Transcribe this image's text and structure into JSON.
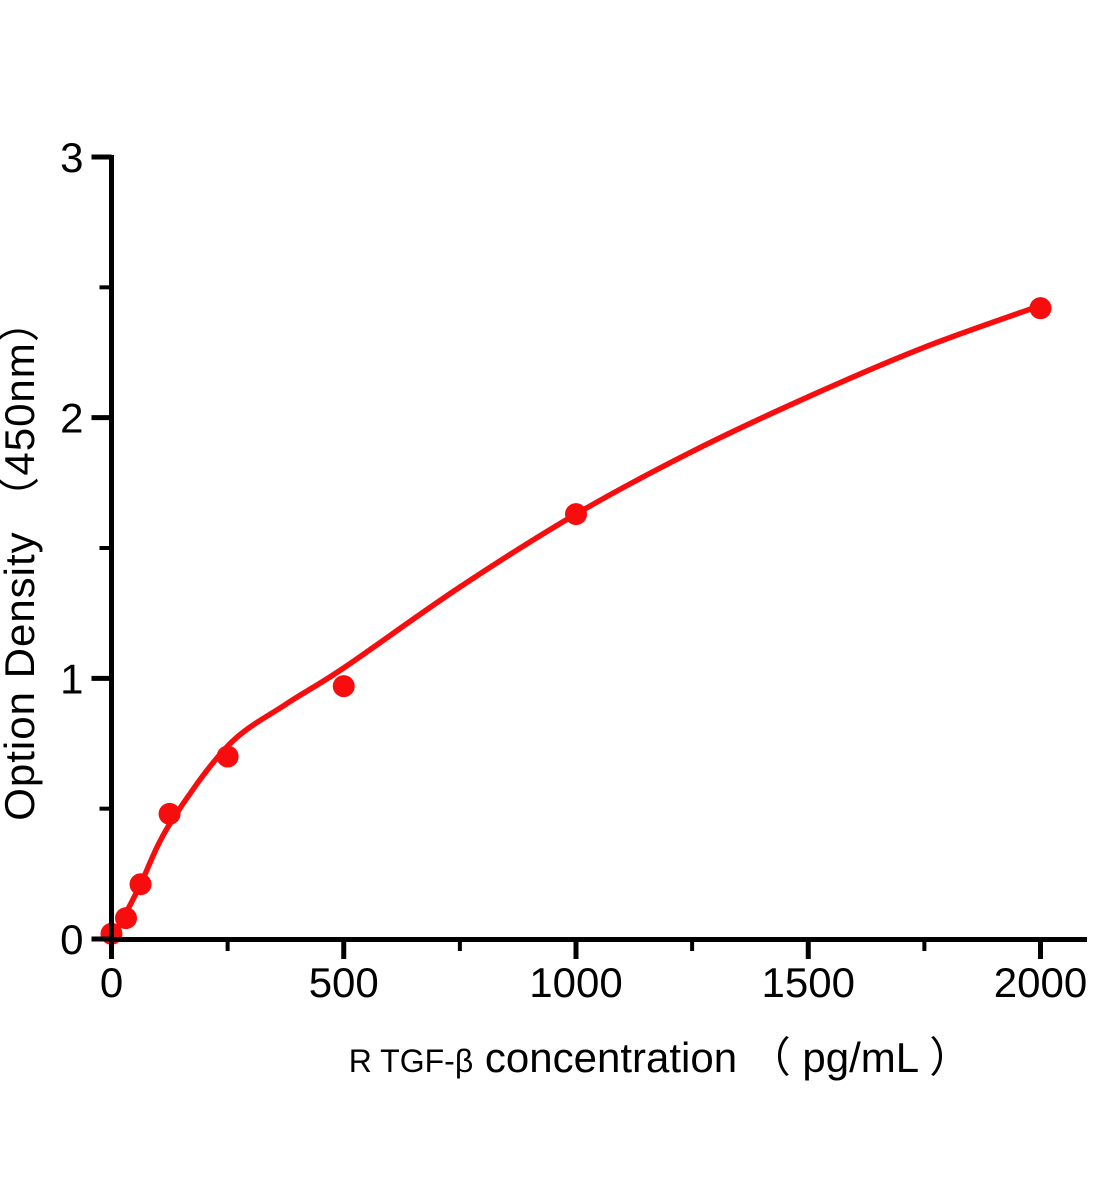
{
  "figure": {
    "background_color": "#ffffff",
    "description": "ELISA standard curve plot"
  },
  "chart_data": {
    "type": "scatter",
    "title": "",
    "xlabel_small": "R TGF-β",
    "xlabel_main": " concentration （ pg/mL ）",
    "ylabel": "Option Density （450nm）",
    "xlim": [
      0,
      2100
    ],
    "ylim": [
      0,
      3
    ],
    "x_major_ticks": [
      0,
      500,
      1000,
      1500,
      2000
    ],
    "x_major_tick_labels": [
      "0",
      "500",
      "1000",
      "1500",
      "2000"
    ],
    "x_minor_ticks": [
      250,
      750,
      1250,
      1750
    ],
    "y_major_ticks": [
      0,
      1,
      2,
      3
    ],
    "y_major_tick_labels": [
      "0",
      "1",
      "2",
      "3"
    ],
    "y_minor_ticks": [
      0.5,
      1.5,
      2.5
    ],
    "grid": false,
    "legend_position": "none",
    "series": [
      {
        "name": "standard-points",
        "type": "scatter",
        "x": [
          0,
          31.25,
          62.5,
          125,
          250,
          500,
          1000,
          2000
        ],
        "y": [
          0.02,
          0.08,
          0.21,
          0.48,
          0.7,
          0.97,
          1.63,
          2.42
        ]
      },
      {
        "name": "fit-curve",
        "type": "line",
        "x": [
          0,
          31.25,
          62.5,
          125,
          250,
          375,
          500,
          750,
          1000,
          1250,
          1500,
          1750,
          2000
        ],
        "y": [
          0.0,
          0.1,
          0.21,
          0.44,
          0.74,
          0.9,
          1.04,
          1.35,
          1.63,
          1.87,
          2.08,
          2.27,
          2.43
        ]
      }
    ],
    "colors": {
      "curve": "#f70d0d",
      "point": "#f70d0d",
      "axis": "#000000",
      "text": "#000000"
    }
  }
}
